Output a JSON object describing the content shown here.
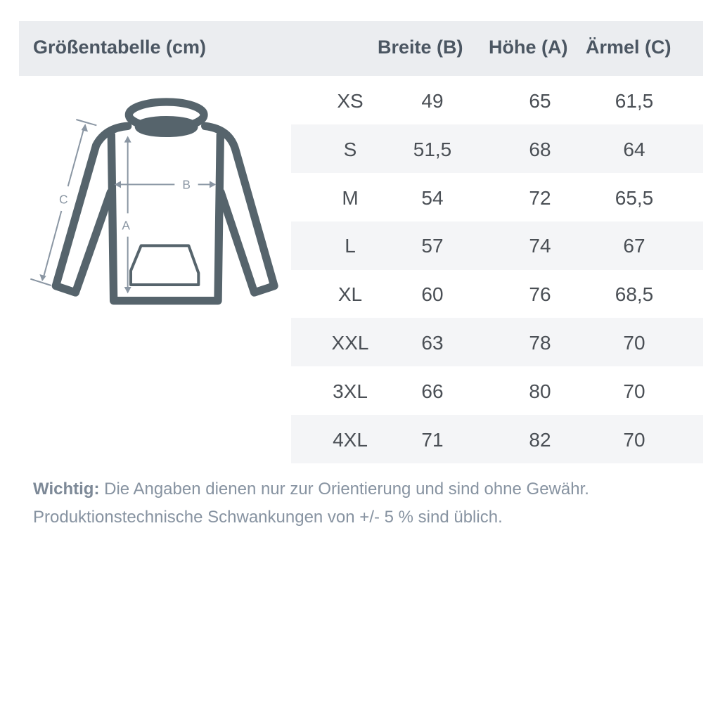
{
  "header": {
    "title": "Größentabelle (cm)",
    "columns": [
      "Breite (B)",
      "Höhe (A)",
      "Ärmel (C)"
    ]
  },
  "diagram": {
    "labels": {
      "a": "A",
      "b": "B",
      "c": "C"
    },
    "icon": "hoodie-icon",
    "outline_color": "#56646c",
    "arrow_color": "#8a96a3"
  },
  "rows": [
    {
      "size": "XS",
      "breite": "49",
      "hoehe": "65",
      "aermel": "61,5"
    },
    {
      "size": "S",
      "breite": "51,5",
      "hoehe": "68",
      "aermel": "64"
    },
    {
      "size": "M",
      "breite": "54",
      "hoehe": "72",
      "aermel": "65,5"
    },
    {
      "size": "L",
      "breite": "57",
      "hoehe": "74",
      "aermel": "67"
    },
    {
      "size": "XL",
      "breite": "60",
      "hoehe": "76",
      "aermel": "68,5"
    },
    {
      "size": "XXL",
      "breite": "63",
      "hoehe": "78",
      "aermel": "70"
    },
    {
      "size": "3XL",
      "breite": "66",
      "hoehe": "80",
      "aermel": "70"
    },
    {
      "size": "4XL",
      "breite": "71",
      "hoehe": "82",
      "aermel": "70"
    }
  ],
  "note": {
    "label": "Wichtig:",
    "line1": " Die Angaben dienen nur zur Orientierung und sind ohne Gewähr.",
    "line2": "Produktionstechnische Schwankungen von +/- 5 % sind üblich."
  }
}
